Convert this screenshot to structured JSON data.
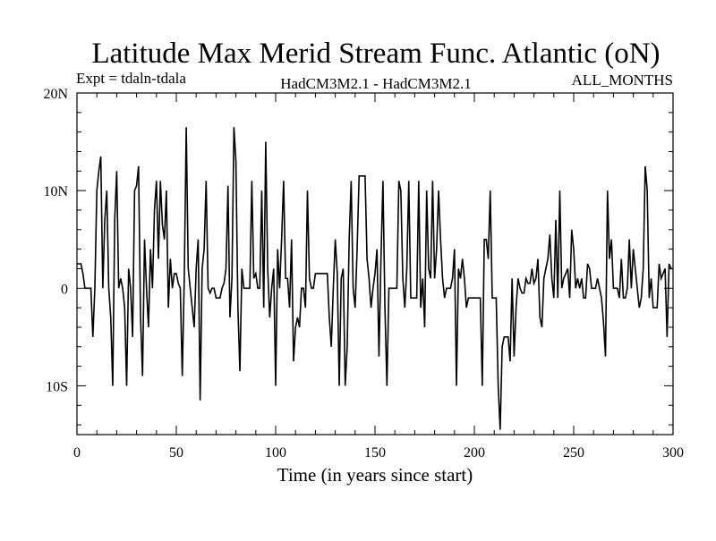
{
  "chart_data": {
    "type": "line",
    "title": "Latitude Max Merid Stream Func. Atlantic (oN)",
    "subtitle_left": "Expt = tdaln-tdala",
    "subtitle_center": "HadCM3M2.1 - HadCM3M2.1",
    "subtitle_right": "ALL_MONTHS",
    "xlabel": "Time (in years since start)",
    "ylabel": "",
    "xlim": [
      0,
      300
    ],
    "ylim": [
      -15,
      20
    ],
    "x_ticks": [
      0,
      50,
      100,
      150,
      200,
      250,
      300
    ],
    "x_tick_labels": [
      "0",
      "50",
      "100",
      "150",
      "200",
      "250",
      "300"
    ],
    "y_ticks": [
      -10,
      0,
      10,
      20
    ],
    "y_tick_labels": [
      "10S",
      "0",
      "10N",
      "20N"
    ],
    "grid": false,
    "series": [
      {
        "values": [
          [
            0,
            2.5
          ],
          [
            1,
            2.5
          ],
          [
            2,
            2.5
          ],
          [
            3,
            1.5
          ],
          [
            4,
            0
          ],
          [
            5,
            0
          ],
          [
            6,
            0
          ],
          [
            7,
            0
          ],
          [
            8,
            -5
          ],
          [
            9,
            0
          ],
          [
            10,
            10
          ],
          [
            11,
            12
          ],
          [
            12,
            13.5
          ],
          [
            13,
            0
          ],
          [
            14,
            7
          ],
          [
            15,
            10
          ],
          [
            16,
            0
          ],
          [
            17,
            -3
          ],
          [
            18,
            -10
          ],
          [
            19,
            7
          ],
          [
            20,
            12
          ],
          [
            21,
            0
          ],
          [
            22,
            1
          ],
          [
            23,
            0
          ],
          [
            24,
            -2
          ],
          [
            25,
            -10
          ],
          [
            26,
            2
          ],
          [
            27,
            0
          ],
          [
            28,
            -5
          ],
          [
            29,
            10
          ],
          [
            30,
            10.5
          ],
          [
            31,
            12.5
          ],
          [
            32,
            -3
          ],
          [
            33,
            -9
          ],
          [
            34,
            5
          ],
          [
            35,
            0
          ],
          [
            36,
            -4
          ],
          [
            37,
            4
          ],
          [
            38,
            0
          ],
          [
            39,
            8
          ],
          [
            40,
            11
          ],
          [
            41,
            3
          ],
          [
            42,
            11
          ],
          [
            43,
            6.5
          ],
          [
            44,
            5
          ],
          [
            45,
            10
          ],
          [
            46,
            -2
          ],
          [
            47,
            3
          ],
          [
            48,
            0
          ],
          [
            49,
            1.5
          ],
          [
            50,
            1.5
          ],
          [
            51,
            0.5
          ],
          [
            52,
            0
          ],
          [
            53,
            -9
          ],
          [
            54,
            1
          ],
          [
            55,
            16.5
          ],
          [
            56,
            2
          ],
          [
            57,
            0
          ],
          [
            58,
            -2
          ],
          [
            59,
            -4
          ],
          [
            60,
            2
          ],
          [
            61,
            5
          ],
          [
            62,
            -11.5
          ],
          [
            63,
            2
          ],
          [
            64,
            4
          ],
          [
            65,
            11
          ],
          [
            66,
            0
          ],
          [
            67,
            -0.5
          ],
          [
            68,
            0
          ],
          [
            69,
            0
          ],
          [
            70,
            -1
          ],
          [
            71,
            -1
          ],
          [
            72,
            -1
          ],
          [
            73,
            0
          ],
          [
            74,
            0.5
          ],
          [
            75,
            2
          ],
          [
            76,
            10.5
          ],
          [
            77,
            -3
          ],
          [
            78,
            1
          ],
          [
            79,
            16.5
          ],
          [
            80,
            13
          ],
          [
            81,
            -2
          ],
          [
            82,
            -8.5
          ],
          [
            83,
            2
          ],
          [
            84,
            0
          ],
          [
            85,
            0
          ],
          [
            86,
            0
          ],
          [
            87,
            0
          ],
          [
            88,
            11
          ],
          [
            89,
            1
          ],
          [
            90,
            1.5
          ],
          [
            91,
            0
          ],
          [
            92,
            0
          ],
          [
            93,
            10
          ],
          [
            94,
            -2
          ],
          [
            95,
            15
          ],
          [
            96,
            2
          ],
          [
            97,
            -3
          ],
          [
            98,
            0
          ],
          [
            99,
            2
          ],
          [
            100,
            -10
          ],
          [
            101,
            4
          ],
          [
            102,
            0
          ],
          [
            103,
            5
          ],
          [
            104,
            11
          ],
          [
            105,
            1
          ],
          [
            106,
            1
          ],
          [
            107,
            -2
          ],
          [
            108,
            5
          ],
          [
            109,
            -7.5
          ],
          [
            110,
            -4
          ],
          [
            111,
            -3
          ],
          [
            112,
            -4
          ],
          [
            113,
            0
          ],
          [
            114,
            0
          ],
          [
            115,
            -2
          ],
          [
            116,
            10
          ],
          [
            117,
            1
          ],
          [
            118,
            0
          ],
          [
            119,
            0
          ],
          [
            120,
            1.5
          ],
          [
            121,
            1.5
          ],
          [
            122,
            1.5
          ],
          [
            123,
            1.5
          ],
          [
            124,
            1.5
          ],
          [
            125,
            1.5
          ],
          [
            126,
            1.5
          ],
          [
            127,
            -3
          ],
          [
            128,
            -6
          ],
          [
            129,
            0
          ],
          [
            130,
            5
          ],
          [
            131,
            1.5
          ],
          [
            132,
            -10
          ],
          [
            133,
            1
          ],
          [
            134,
            2
          ],
          [
            135,
            -10
          ],
          [
            136,
            -6
          ],
          [
            137,
            5
          ],
          [
            138,
            11
          ],
          [
            139,
            0
          ],
          [
            140,
            -2
          ],
          [
            141,
            4
          ],
          [
            142,
            11.5
          ],
          [
            143,
            11.5
          ],
          [
            144,
            11.5
          ],
          [
            145,
            11.5
          ],
          [
            146,
            3
          ],
          [
            147,
            1
          ],
          [
            148,
            -2
          ],
          [
            149,
            0
          ],
          [
            150,
            1.5
          ],
          [
            151,
            4
          ],
          [
            152,
            -7
          ],
          [
            153,
            3
          ],
          [
            154,
            11
          ],
          [
            155,
            -2
          ],
          [
            156,
            -10
          ],
          [
            157,
            0
          ],
          [
            158,
            0
          ],
          [
            159,
            0
          ],
          [
            160,
            0
          ],
          [
            161,
            0
          ],
          [
            162,
            11
          ],
          [
            163,
            10
          ],
          [
            164,
            1
          ],
          [
            165,
            -2
          ],
          [
            166,
            2
          ],
          [
            167,
            11
          ],
          [
            168,
            -1
          ],
          [
            169,
            -1
          ],
          [
            170,
            -1
          ],
          [
            171,
            -1
          ],
          [
            172,
            11
          ],
          [
            173,
            -2
          ],
          [
            174,
            1
          ],
          [
            175,
            -4
          ],
          [
            176,
            10
          ],
          [
            177,
            2
          ],
          [
            178,
            1
          ],
          [
            179,
            11
          ],
          [
            180,
            1
          ],
          [
            181,
            4
          ],
          [
            182,
            10
          ],
          [
            183,
            5
          ],
          [
            184,
            1
          ],
          [
            185,
            -1
          ],
          [
            186,
            0
          ],
          [
            187,
            0
          ],
          [
            188,
            0
          ],
          [
            189,
            1
          ],
          [
            190,
            4
          ],
          [
            191,
            -10
          ],
          [
            192,
            2
          ],
          [
            193,
            1
          ],
          [
            194,
            3
          ],
          [
            195,
            1
          ],
          [
            196,
            -2
          ],
          [
            197,
            -1
          ],
          [
            198,
            -1
          ],
          [
            199,
            -1
          ],
          [
            200,
            -1
          ],
          [
            201,
            -1
          ],
          [
            202,
            -1
          ],
          [
            203,
            -1
          ],
          [
            204,
            -10
          ],
          [
            205,
            5
          ],
          [
            206,
            5
          ],
          [
            207,
            3
          ],
          [
            208,
            10
          ],
          [
            209,
            -1
          ],
          [
            210,
            -1
          ],
          [
            211,
            -1
          ],
          [
            212,
            -10
          ],
          [
            213,
            -14.5
          ],
          [
            214,
            -6
          ],
          [
            215,
            -5
          ],
          [
            216,
            -5
          ],
          [
            217,
            -5
          ],
          [
            218,
            -7.5
          ],
          [
            219,
            1
          ],
          [
            220,
            -7
          ],
          [
            221,
            -2
          ],
          [
            222,
            1
          ],
          [
            223,
            0
          ],
          [
            224,
            -0.5
          ],
          [
            225,
            -0.5
          ],
          [
            226,
            1
          ],
          [
            227,
            0.5
          ],
          [
            228,
            0.5
          ],
          [
            229,
            2
          ],
          [
            230,
            0.5
          ],
          [
            231,
            1
          ],
          [
            232,
            3
          ],
          [
            233,
            -3
          ],
          [
            234,
            -4
          ],
          [
            235,
            1
          ],
          [
            236,
            2
          ],
          [
            237,
            3
          ],
          [
            238,
            5.5
          ],
          [
            239,
            1
          ],
          [
            240,
            -1
          ],
          [
            241,
            7
          ],
          [
            242,
            -1
          ],
          [
            243,
            10
          ],
          [
            244,
            0
          ],
          [
            245,
            1
          ],
          [
            246,
            1.5
          ],
          [
            247,
            2
          ],
          [
            248,
            -1
          ],
          [
            249,
            6
          ],
          [
            250,
            4
          ],
          [
            251,
            0
          ],
          [
            252,
            1
          ],
          [
            253,
            0
          ],
          [
            254,
            1
          ],
          [
            255,
            -1
          ],
          [
            256,
            -1
          ],
          [
            257,
            2.5
          ],
          [
            258,
            2
          ],
          [
            259,
            0
          ],
          [
            260,
            0
          ],
          [
            261,
            0
          ],
          [
            262,
            1
          ],
          [
            263,
            0
          ],
          [
            264,
            -1
          ],
          [
            265,
            -3.5
          ],
          [
            266,
            -7
          ],
          [
            267,
            10
          ],
          [
            268,
            3
          ],
          [
            269,
            5
          ],
          [
            270,
            0
          ],
          [
            271,
            0
          ],
          [
            272,
            0
          ],
          [
            273,
            -1
          ],
          [
            274,
            3
          ],
          [
            275,
            -1
          ],
          [
            276,
            -1
          ],
          [
            277,
            0
          ],
          [
            278,
            5
          ],
          [
            279,
            0
          ],
          [
            280,
            4
          ],
          [
            281,
            2
          ],
          [
            282,
            0
          ],
          [
            283,
            -2
          ],
          [
            284,
            -1
          ],
          [
            285,
            2
          ],
          [
            286,
            12.5
          ],
          [
            287,
            10
          ],
          [
            288,
            -1
          ],
          [
            289,
            1
          ],
          [
            290,
            -2
          ],
          [
            291,
            -2
          ],
          [
            292,
            -2
          ],
          [
            293,
            2.5
          ],
          [
            294,
            1
          ],
          [
            295,
            1.5
          ],
          [
            296,
            2
          ],
          [
            297,
            -5
          ],
          [
            298,
            2.5
          ],
          [
            299,
            2
          ],
          [
            300,
            2
          ]
        ]
      }
    ]
  }
}
